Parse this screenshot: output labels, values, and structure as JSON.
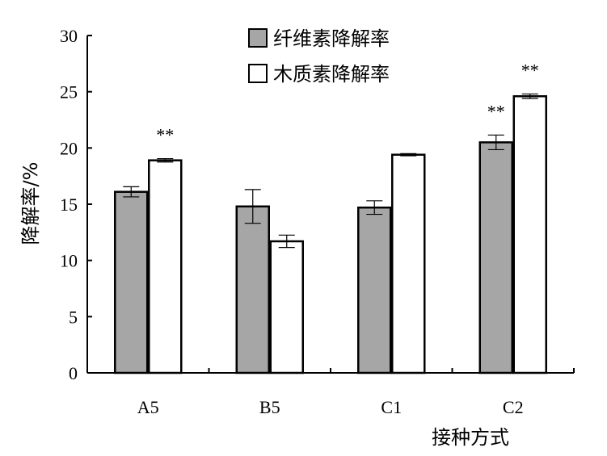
{
  "chart_data": {
    "type": "bar",
    "categories": [
      "A5",
      "B5",
      "C1",
      "C2"
    ],
    "series": [
      {
        "name": "纤维素降解率",
        "color": "#a6a6a6",
        "values": [
          16.1,
          14.8,
          14.7,
          20.5
        ],
        "errors": [
          0.45,
          1.5,
          0.6,
          0.65
        ],
        "significance": [
          "",
          "",
          "",
          "**"
        ]
      },
      {
        "name": "木质素降解率",
        "color": "#ffffff",
        "values": [
          18.9,
          11.7,
          19.4,
          24.6
        ],
        "errors": [
          0.15,
          0.55,
          0.1,
          0.2
        ],
        "significance": [
          "**",
          "",
          "",
          "**"
        ]
      }
    ],
    "xlabel": "接种方式",
    "ylabel": "降解率/%",
    "ylim": [
      0,
      30
    ],
    "yticks": [
      "0",
      "5",
      "10",
      "15",
      "20",
      "25",
      "30"
    ],
    "legend_position": "top-center",
    "grid": false
  }
}
